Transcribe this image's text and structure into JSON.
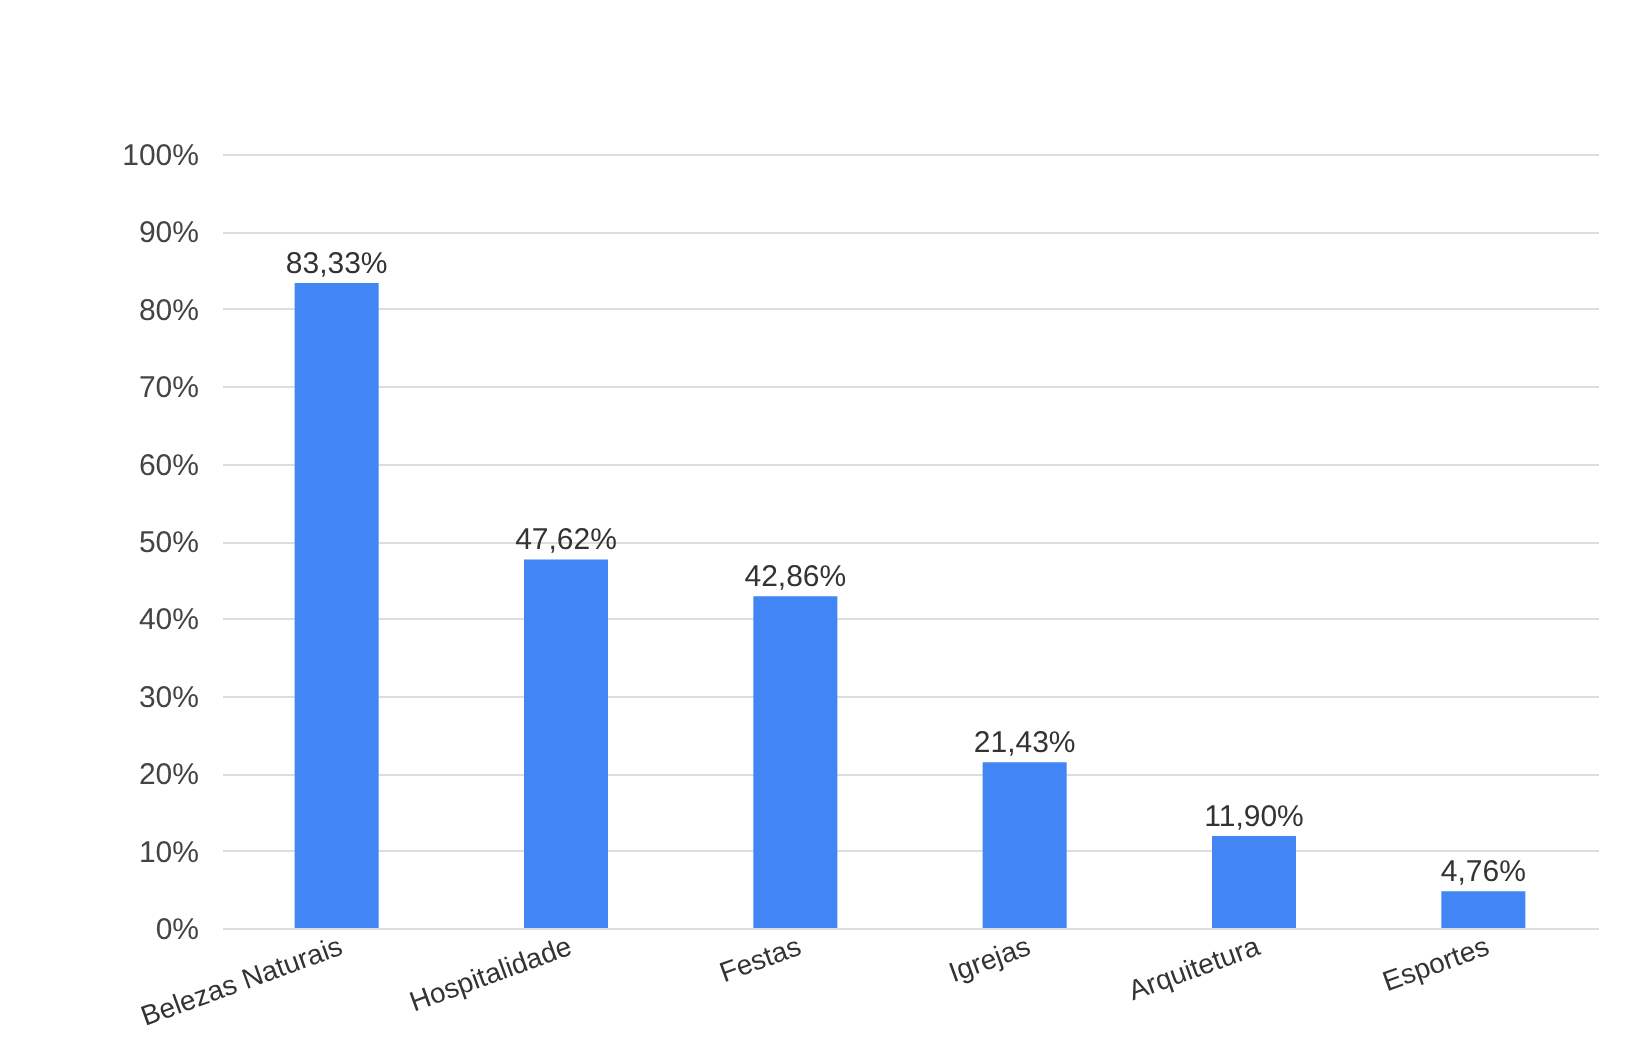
{
  "chart_data": {
    "type": "bar",
    "categories": [
      "Belezas Naturais",
      "Hospitalidade",
      "Festas",
      "Igrejas",
      "Arquitetura",
      "Esportes"
    ],
    "values": [
      83.33,
      47.62,
      42.86,
      21.43,
      11.9,
      4.76
    ],
    "value_labels": [
      "83,33%",
      "47,62%",
      "42,86%",
      "21,43%",
      "11,90%",
      "4,76%"
    ],
    "color": "#4285f4",
    "ylim": [
      0,
      100
    ],
    "yticks": [
      {
        "value": 0,
        "label": "0%"
      },
      {
        "value": 10,
        "label": "10%"
      },
      {
        "value": 20,
        "label": "20%"
      },
      {
        "value": 30,
        "label": "30%"
      },
      {
        "value": 40,
        "label": "40%"
      },
      {
        "value": 50,
        "label": "50%"
      },
      {
        "value": 60,
        "label": "60%"
      },
      {
        "value": 70,
        "label": "70%"
      },
      {
        "value": 80,
        "label": "80%"
      },
      {
        "value": 90,
        "label": "90%"
      },
      {
        "value": 100,
        "label": "100%"
      }
    ],
    "grid": "y"
  }
}
